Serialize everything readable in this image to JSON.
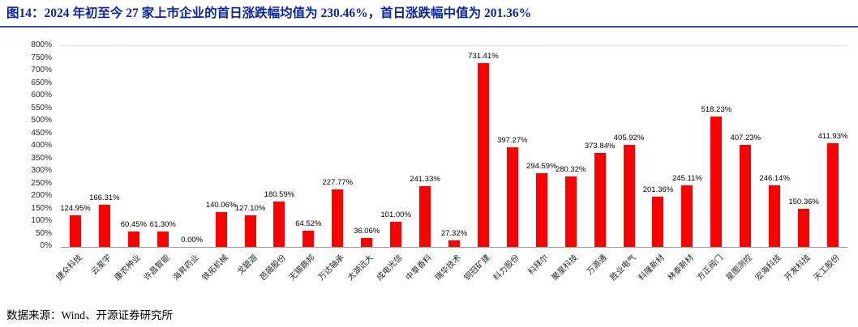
{
  "title": {
    "prefix": "图14：",
    "text": "2024 年初至今 27 家上市企业的首日涨跌幅均值为 230.46%，首日涨跌幅中值为 201.36%"
  },
  "footer": {
    "source": "数据来源：Wind、开源证券研究所"
  },
  "colors": {
    "title": "#0b24a0",
    "divider": "#2e4fa0",
    "bar": "#ff0000"
  },
  "chart_data": {
    "type": "bar",
    "title": "2024 年初至今 27 家上市企业的首日涨跌幅均值为 230.46%，首日涨跌幅中值为 201.36%",
    "xlabel": "",
    "ylabel": "",
    "ylim": [
      0,
      800
    ],
    "grid": false,
    "legend": "none",
    "y_ticks": [
      "800%",
      "750%",
      "700%",
      "650%",
      "600%",
      "550%",
      "500%",
      "450%",
      "400%",
      "350%",
      "300%",
      "250%",
      "200%",
      "150%",
      "100%",
      "50%",
      "0%"
    ],
    "categories": [
      "捷众科技",
      "云星宇",
      "康农种业",
      "许昌智能",
      "海昇药业",
      "铁拓机械",
      "戈碧迦",
      "芭薇股份",
      "无锡鼎邦",
      "万达轴承",
      "太湖远大",
      "成电光信",
      "中草香料",
      "瑞华技术",
      "铜冠矿建",
      "科力股份",
      "科拜尔",
      "聚星科技",
      "万源通",
      "胜业电气",
      "科隆新材",
      "林泰新材",
      "方正阀门",
      "星图测控",
      "宏海科技",
      "开发科技",
      "天工股份"
    ],
    "values": [
      124.95,
      166.31,
      60.45,
      61.3,
      0.0,
      140.06,
      127.1,
      180.59,
      64.52,
      227.77,
      36.06,
      101.0,
      241.33,
      27.32,
      731.41,
      397.27,
      294.59,
      280.32,
      373.84,
      405.92,
      201.36,
      245.11,
      518.23,
      407.23,
      246.14,
      150.36,
      411.93
    ],
    "value_labels": [
      "124.95%",
      "166.31%",
      "60.45%",
      "61.30%",
      "0.00%",
      "140.06%",
      "127.10%",
      "180.59%",
      "64.52%",
      "227.77%",
      "36.06%",
      "101.00%",
      "241.33%",
      "27.32%",
      "731.41%",
      "397.27%",
      "294.59%",
      "280.32%",
      "373.84%",
      "405.92%",
      "201.36%",
      "245.11%",
      "518.23%",
      "407.23%",
      "246.14%",
      "150.36%",
      "411.93%"
    ]
  }
}
